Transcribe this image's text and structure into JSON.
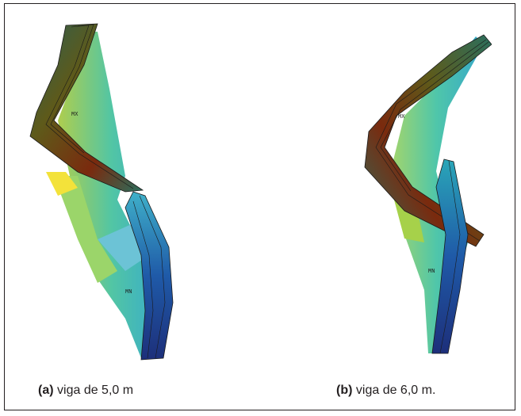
{
  "figure": {
    "panel_a": {
      "tag": "(a)",
      "text": "viga de 5,0 m",
      "node_labels": [
        "MX",
        "MN"
      ]
    },
    "panel_b": {
      "tag": "(b)",
      "text": "viga de 6,0 m.",
      "node_labels": [
        "MX",
        "MN"
      ]
    }
  },
  "colors": {
    "frame": "#231f20",
    "hot": "#7a2a0e",
    "warm": "#5e5a1a",
    "mid_green": "#8fd05a",
    "teal": "#2db3a6",
    "cyan": "#22a3c9",
    "blue": "#1f3f9a",
    "navy": "#1d2f7a",
    "yellow": "#f3e23a"
  }
}
